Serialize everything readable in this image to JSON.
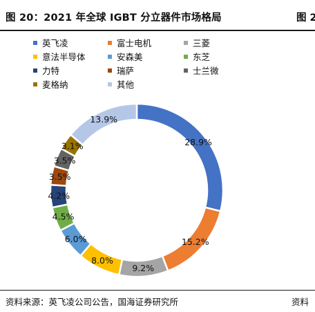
{
  "header": {
    "title": "图 20：2021 年全球 IGBT 分立器件市场格局",
    "right_fragment": "图 2"
  },
  "footer": {
    "source": "资料来源：英飞凌公司公告，国海证券研究所",
    "right_fragment": "资料"
  },
  "chart_data": {
    "type": "pie",
    "style": "donut",
    "title": "",
    "legend_position": "top",
    "label_format": "percent",
    "slices": [
      {
        "name": "英飞凌",
        "value": 28.9,
        "label": "28.9%",
        "color": "#4472C4"
      },
      {
        "name": "富士电机",
        "value": 15.2,
        "label": "15.2%",
        "color": "#ED7D31"
      },
      {
        "name": "三菱",
        "value": 9.2,
        "label": "9.2%",
        "color": "#A5A5A5"
      },
      {
        "name": "意法半导体",
        "value": 8.0,
        "label": "8.0%",
        "color": "#FFC000"
      },
      {
        "name": "安森美",
        "value": 6.0,
        "label": "6.0%",
        "color": "#5B9BD5"
      },
      {
        "name": "东芝",
        "value": 4.5,
        "label": "4.5%",
        "color": "#70AD47"
      },
      {
        "name": "力特",
        "value": 4.2,
        "label": "4.2%",
        "color": "#264478"
      },
      {
        "name": "瑞萨",
        "value": 3.5,
        "label": "3.5%",
        "color": "#9E480E"
      },
      {
        "name": "士兰微",
        "value": 3.5,
        "label": "3.5%",
        "color": "#636363"
      },
      {
        "name": "麦格纳",
        "value": 3.1,
        "label": "3.1%",
        "color": "#997300"
      },
      {
        "name": "其他",
        "value": 13.9,
        "label": "13.9%",
        "color": "#B4C7E7"
      }
    ]
  }
}
